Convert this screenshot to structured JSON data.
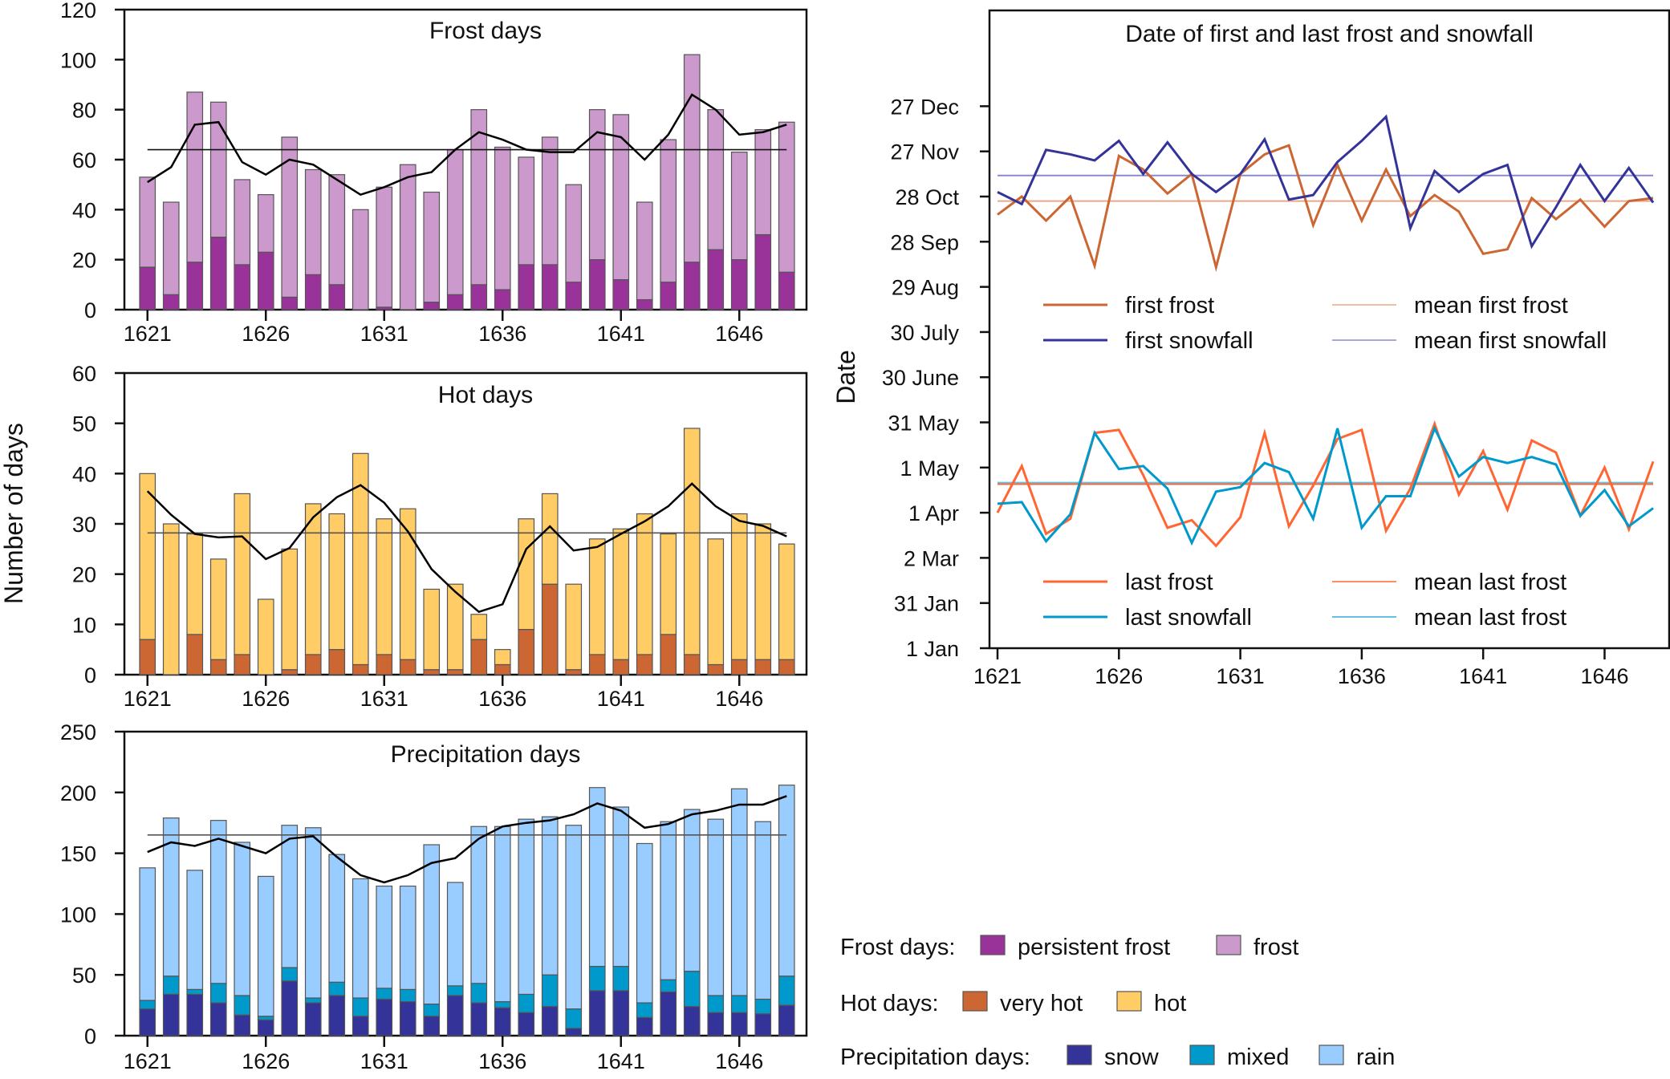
{
  "left_axis_title": "Number of days",
  "legend": {
    "frost": {
      "label": "Frost days:",
      "items": [
        {
          "name": "persistent frost",
          "color": "#993399"
        },
        {
          "name": "frost",
          "color": "#cc99cc"
        }
      ]
    },
    "hot": {
      "label": "Hot days:",
      "items": [
        {
          "name": "very hot",
          "color": "#cc6633"
        },
        {
          "name": "hot",
          "color": "#ffcc66"
        }
      ]
    },
    "precip": {
      "label": "Precipitation days:",
      "items": [
        {
          "name": "snow",
          "color": "#333399"
        },
        {
          "name": "mixed",
          "color": "#0099cc"
        },
        {
          "name": "rain",
          "color": "#99ccff"
        }
      ]
    }
  },
  "chart_data": [
    {
      "id": "frost",
      "type": "bar",
      "stacked": true,
      "title": "Frost days",
      "xlabel": "",
      "ylabel": "Number of days",
      "ylim": [
        0,
        120
      ],
      "yticks": [
        0,
        20,
        40,
        60,
        80,
        100,
        120
      ],
      "xticks": [
        1621,
        1626,
        1631,
        1636,
        1641,
        1646
      ],
      "categories": [
        1621,
        1622,
        1623,
        1624,
        1625,
        1626,
        1627,
        1628,
        1629,
        1630,
        1631,
        1632,
        1633,
        1634,
        1635,
        1636,
        1637,
        1638,
        1639,
        1640,
        1641,
        1642,
        1643,
        1644,
        1645,
        1646,
        1647,
        1648
      ],
      "series": [
        {
          "name": "persistent frost",
          "color": "#993399",
          "values": [
            17,
            6,
            19,
            29,
            18,
            23,
            5,
            14,
            10,
            0,
            1,
            0,
            3,
            6,
            10,
            8,
            18,
            18,
            11,
            20,
            12,
            4,
            11,
            19,
            24,
            20,
            30,
            15
          ]
        },
        {
          "name": "frost",
          "color": "#cc99cc",
          "values": [
            36,
            37,
            68,
            54,
            34,
            23,
            64,
            42,
            44,
            40,
            48,
            58,
            44,
            58,
            70,
            57,
            43,
            51,
            39,
            60,
            66,
            39,
            57,
            83,
            56,
            43,
            42,
            60
          ]
        }
      ],
      "totals": [
        53,
        43,
        87,
        83,
        52,
        46,
        69,
        56,
        54,
        40,
        49,
        58,
        47,
        64,
        80,
        65,
        61,
        69,
        50,
        80,
        78,
        43,
        68,
        102,
        80,
        63,
        72,
        75
      ],
      "running_mean": [
        51,
        57,
        74,
        75,
        59,
        54,
        60,
        58,
        52,
        46,
        49,
        53,
        55,
        64,
        71,
        68,
        64,
        63,
        63,
        71,
        69,
        60,
        70,
        86,
        80,
        70,
        71,
        74
      ],
      "mean_line": 64,
      "mean_line_color": "#111111",
      "running_mean_color": "#000000"
    },
    {
      "id": "hot",
      "type": "bar",
      "stacked": true,
      "title": "Hot days",
      "xlabel": "",
      "ylabel": "Number of days",
      "ylim": [
        0,
        60
      ],
      "yticks": [
        0,
        10,
        20,
        30,
        40,
        50,
        60
      ],
      "xticks": [
        1621,
        1626,
        1631,
        1636,
        1641,
        1646
      ],
      "categories": [
        1621,
        1622,
        1623,
        1624,
        1625,
        1626,
        1627,
        1628,
        1629,
        1630,
        1631,
        1632,
        1633,
        1634,
        1635,
        1636,
        1637,
        1638,
        1639,
        1640,
        1641,
        1642,
        1643,
        1644,
        1645,
        1646,
        1647,
        1648
      ],
      "series": [
        {
          "name": "very hot",
          "color": "#cc6633",
          "values": [
            7,
            0,
            8,
            3,
            4,
            0,
            1,
            4,
            5,
            2,
            4,
            3,
            1,
            1,
            7,
            2,
            9,
            18,
            1,
            4,
            3,
            4,
            8,
            4,
            2,
            3,
            3,
            3
          ]
        },
        {
          "name": "hot",
          "color": "#ffcc66",
          "values": [
            33,
            30,
            20,
            20,
            32,
            15,
            24,
            30,
            27,
            42,
            27,
            30,
            16,
            17,
            5,
            3,
            22,
            18,
            17,
            23,
            26,
            28,
            20,
            45,
            25,
            29,
            27,
            23
          ]
        }
      ],
      "totals": [
        40,
        30,
        28,
        23,
        36,
        15,
        25,
        34,
        32,
        44,
        31,
        33,
        17,
        18,
        12,
        5,
        31,
        36,
        18,
        27,
        29,
        32,
        28,
        49,
        27,
        32,
        30,
        26
      ],
      "running_mean": [
        36.5,
        31.8,
        28,
        27.3,
        27.5,
        23,
        25.2,
        31.3,
        35.3,
        37.7,
        34.2,
        28.5,
        21,
        16.5,
        12.5,
        14,
        25,
        29.5,
        24.7,
        25.4,
        28,
        30.5,
        33.5,
        38,
        33.5,
        30.6,
        29.6,
        27.5
      ],
      "mean_line": 28.2,
      "mean_line_color": "#555555",
      "running_mean_color": "#000000"
    },
    {
      "id": "precip",
      "type": "bar",
      "stacked": true,
      "title": "Precipitation days",
      "xlabel": "",
      "ylabel": "Number of days",
      "ylim": [
        0,
        250
      ],
      "yticks": [
        0,
        50,
        100,
        150,
        200,
        250
      ],
      "xticks": [
        1621,
        1626,
        1631,
        1636,
        1641,
        1646
      ],
      "categories": [
        1621,
        1622,
        1623,
        1624,
        1625,
        1626,
        1627,
        1628,
        1629,
        1630,
        1631,
        1632,
        1633,
        1634,
        1635,
        1636,
        1637,
        1638,
        1639,
        1640,
        1641,
        1642,
        1643,
        1644,
        1645,
        1646,
        1647,
        1648
      ],
      "series": [
        {
          "name": "snow",
          "color": "#333399",
          "values": [
            22,
            34,
            34,
            27,
            17,
            13,
            45,
            27,
            33,
            16,
            30,
            28,
            16,
            33,
            27,
            23,
            19,
            24,
            6,
            37,
            37,
            15,
            36,
            24,
            19,
            19,
            18,
            25
          ]
        },
        {
          "name": "mixed",
          "color": "#0099cc",
          "values": [
            7,
            15,
            4,
            16,
            16,
            3,
            11,
            4,
            11,
            15,
            9,
            10,
            10,
            8,
            16,
            5,
            15,
            26,
            16,
            20,
            20,
            12,
            10,
            29,
            14,
            14,
            12,
            24
          ]
        },
        {
          "name": "rain",
          "color": "#99ccff",
          "values": [
            109,
            130,
            98,
            134,
            126,
            115,
            117,
            140,
            105,
            98,
            84,
            85,
            131,
            85,
            129,
            144,
            144,
            130,
            151,
            147,
            131,
            131,
            130,
            133,
            145,
            170,
            146,
            157
          ]
        }
      ],
      "totals": [
        138,
        179,
        136,
        177,
        159,
        131,
        173,
        171,
        149,
        129,
        123,
        123,
        157,
        126,
        172,
        172,
        178,
        180,
        173,
        204,
        188,
        158,
        176,
        186,
        178,
        203,
        176,
        206
      ],
      "running_mean": [
        151,
        159,
        156,
        162,
        156,
        150,
        162,
        164,
        147,
        132,
        126,
        132,
        142,
        146,
        162,
        172,
        175,
        177,
        182,
        191,
        185,
        171,
        174,
        182,
        185,
        190,
        190,
        197
      ],
      "mean_line": 165,
      "mean_line_color": "#555555",
      "running_mean_color": "#000000"
    },
    {
      "id": "dates",
      "type": "line",
      "title": "Date of first and last frost and snowfall",
      "xlabel": "",
      "ylabel": "Date",
      "y_unit": "day of year",
      "ylim": [
        1,
        391
      ],
      "yticks": [
        {
          "doy": 1,
          "label": "1 Jan"
        },
        {
          "doy": 31,
          "label": "31 Jan"
        },
        {
          "doy": 61,
          "label": "2 Mar"
        },
        {
          "doy": 91,
          "label": "1 Apr"
        },
        {
          "doy": 121,
          "label": "1 May"
        },
        {
          "doy": 151,
          "label": "31 May"
        },
        {
          "doy": 181,
          "label": "30 June"
        },
        {
          "doy": 211,
          "label": "30 July"
        },
        {
          "doy": 241,
          "label": "29 Aug"
        },
        {
          "doy": 271,
          "label": "28 Sep"
        },
        {
          "doy": 301,
          "label": "28 Oct"
        },
        {
          "doy": 331,
          "label": "27 Nov"
        },
        {
          "doy": 361,
          "label": "27 Dec"
        }
      ],
      "xticks": [
        1621,
        1626,
        1631,
        1636,
        1641,
        1646
      ],
      "x": [
        1621,
        1622,
        1623,
        1624,
        1625,
        1626,
        1627,
        1628,
        1629,
        1630,
        1631,
        1632,
        1633,
        1634,
        1635,
        1636,
        1637,
        1638,
        1639,
        1640,
        1641,
        1642,
        1643,
        1644,
        1645,
        1646,
        1647,
        1648
      ],
      "series": [
        {
          "name": "first frost",
          "color": "#cc6633",
          "width": 3,
          "values": [
            289,
            301,
            285,
            301,
            255,
            328,
            319,
            303,
            316,
            254,
            316,
            329,
            335,
            282,
            322,
            285,
            319,
            288,
            302,
            291,
            263,
            266,
            300,
            286,
            299,
            281,
            298,
            300
          ]
        },
        {
          "name": "first snowfall",
          "color": "#333399",
          "width": 3,
          "values": [
            304,
            296,
            332,
            329,
            325,
            338,
            316,
            337,
            316,
            304,
            316,
            339,
            299,
            302,
            324,
            338,
            354,
            280,
            318,
            304,
            316,
            322,
            268,
            294,
            322,
            298,
            320,
            297
          ]
        },
        {
          "name": "last frost",
          "color": "#ff6633",
          "width": 3,
          "values": [
            91,
            122,
            77,
            87,
            144,
            146,
            116,
            81,
            86,
            69,
            88,
            144,
            82,
            109,
            140,
            146,
            79,
            107,
            150,
            103,
            132,
            93,
            139,
            131,
            89,
            121,
            80,
            125
          ]
        },
        {
          "name": "last snowfall",
          "color": "#0099cc",
          "width": 3,
          "values": [
            97,
            98,
            72,
            90,
            144,
            120,
            122,
            107,
            71,
            105,
            108,
            124,
            118,
            87,
            147,
            81,
            102,
            102,
            147,
            115,
            128,
            124,
            128,
            123,
            89,
            106,
            82,
            94
          ]
        }
      ],
      "reference_lines": [
        {
          "name": "mean first frost",
          "color": "#e8a88a",
          "value": 298
        },
        {
          "name": "mean first snowfall",
          "color": "#8a8acc",
          "value": 315
        },
        {
          "name": "mean last frost",
          "color": "#ff6633",
          "value": 110
        },
        {
          "name": "mean last frost",
          "color": "#66c0e0",
          "value": 111
        }
      ],
      "legend_top": [
        {
          "name": "first frost",
          "color": "#cc6633",
          "style": "thick"
        },
        {
          "name": "mean first frost",
          "color": "#e8a88a",
          "style": "thin"
        },
        {
          "name": "first snowfall",
          "color": "#333399",
          "style": "thick"
        },
        {
          "name": "mean first snowfall",
          "color": "#8a8acc",
          "style": "thin"
        }
      ],
      "legend_bottom": [
        {
          "name": "last frost",
          "color": "#ff6633",
          "style": "thick"
        },
        {
          "name": "mean last frost",
          "color": "#ff6633",
          "style": "thin"
        },
        {
          "name": "last snowfall",
          "color": "#0099cc",
          "style": "thick"
        },
        {
          "name": "mean last frost",
          "color": "#33aadd",
          "style": "thin"
        }
      ]
    }
  ]
}
